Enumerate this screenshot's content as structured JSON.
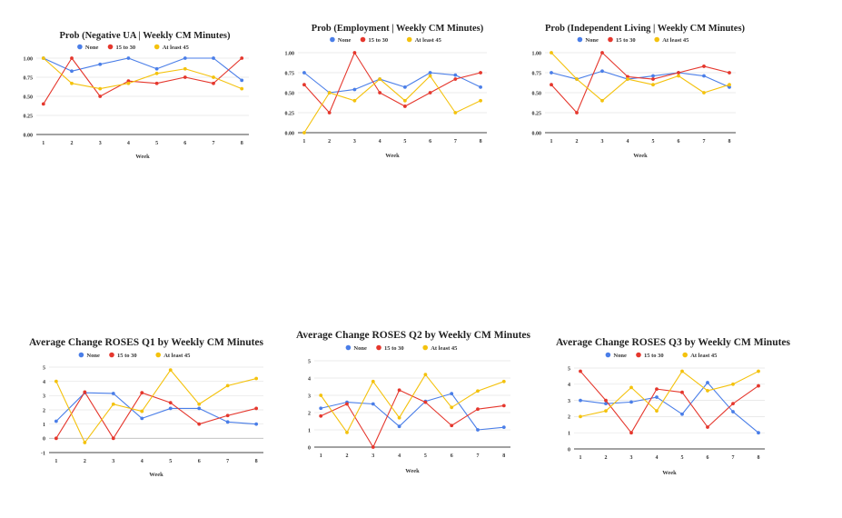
{
  "colors": {
    "none": "#4a7ee8",
    "mid": "#e5372d",
    "high": "#f4c20d",
    "grid": "#e4e4e4",
    "axis": "#444444"
  },
  "chart_data": [
    {
      "type": "line",
      "title": "Prob (Negative UA | Weekly CM Minutes)",
      "xlabel": "Week",
      "ylabel": "",
      "x": [
        1,
        2,
        3,
        4,
        5,
        6,
        7,
        8
      ],
      "ylim": [
        0,
        1
      ],
      "yticks": [
        "0.00",
        "0.25",
        "0.50",
        "0.75",
        "1.00"
      ],
      "grid": true,
      "legend": "top",
      "series": [
        {
          "name": "None",
          "values": [
            1.0,
            0.83,
            0.92,
            1.0,
            0.86,
            1.0,
            1.0,
            0.71
          ]
        },
        {
          "name": "15 to 30",
          "values": [
            0.4,
            1.0,
            0.5,
            0.7,
            0.67,
            0.75,
            0.67,
            1.0
          ]
        },
        {
          "name": "At least 45",
          "values": [
            1.0,
            0.67,
            0.6,
            0.67,
            0.8,
            0.86,
            0.75,
            0.6
          ]
        }
      ]
    },
    {
      "type": "line",
      "title": "Prob (Employment | Weekly CM Minutes)",
      "xlabel": "Week",
      "ylabel": "",
      "x": [
        1,
        2,
        3,
        4,
        5,
        6,
        7,
        8
      ],
      "ylim": [
        0,
        1
      ],
      "yticks": [
        "0.00",
        "0.25",
        "0.50",
        "0.75",
        "1.00"
      ],
      "grid": true,
      "legend": "top",
      "series": [
        {
          "name": "None",
          "values": [
            0.75,
            0.5,
            0.54,
            0.67,
            0.57,
            0.75,
            0.72,
            0.57
          ]
        },
        {
          "name": "15 to 30",
          "values": [
            0.6,
            0.25,
            1.0,
            0.5,
            0.33,
            0.5,
            0.67,
            0.75
          ]
        },
        {
          "name": "At least 45",
          "values": [
            0.0,
            0.5,
            0.4,
            0.67,
            0.4,
            0.71,
            0.25,
            0.4
          ]
        }
      ]
    },
    {
      "type": "line",
      "title": "Prob (Independent Living | Weekly CM Minutes)",
      "xlabel": "Week",
      "ylabel": "",
      "x": [
        1,
        2,
        3,
        4,
        5,
        6,
        7,
        8
      ],
      "ylim": [
        0,
        1
      ],
      "yticks": [
        "0.00",
        "0.25",
        "0.50",
        "0.75",
        "1.00"
      ],
      "grid": true,
      "legend": "top",
      "series": [
        {
          "name": "None",
          "values": [
            0.75,
            0.67,
            0.77,
            0.67,
            0.71,
            0.75,
            0.71,
            0.57
          ]
        },
        {
          "name": "15 to 30",
          "values": [
            0.6,
            0.25,
            1.0,
            0.7,
            0.67,
            0.75,
            0.83,
            0.75
          ]
        },
        {
          "name": "At least 45",
          "values": [
            1.0,
            0.67,
            0.4,
            0.67,
            0.6,
            0.71,
            0.5,
            0.6
          ]
        }
      ]
    },
    {
      "type": "line",
      "title": "Average Change ROSES Q1 by Weekly CM Minutes",
      "xlabel": "Week",
      "ylabel": "",
      "x": [
        1,
        2,
        3,
        4,
        5,
        6,
        7,
        8
      ],
      "ylim": [
        -1,
        5
      ],
      "yticks": [
        "-1",
        "0",
        "1",
        "2",
        "3",
        "4",
        "5"
      ],
      "grid": true,
      "legend": "top",
      "series": [
        {
          "name": "None",
          "values": [
            1.2,
            3.2,
            3.15,
            1.4,
            2.1,
            2.1,
            1.15,
            1.0
          ]
        },
        {
          "name": "15 to 30",
          "values": [
            0.0,
            3.25,
            0.0,
            3.2,
            2.5,
            1.0,
            1.6,
            2.1
          ]
        },
        {
          "name": "At least 45",
          "values": [
            4.0,
            -0.3,
            2.4,
            1.9,
            4.8,
            2.4,
            3.7,
            4.2
          ]
        }
      ]
    },
    {
      "type": "line",
      "title": "Average Change ROSES Q2 by Weekly CM Minutes",
      "xlabel": "Week",
      "ylabel": "",
      "x": [
        1,
        2,
        3,
        4,
        5,
        6,
        7,
        8
      ],
      "ylim": [
        0,
        5
      ],
      "yticks": [
        "0",
        "1",
        "2",
        "3",
        "4",
        "5"
      ],
      "grid": true,
      "legend": "top",
      "series": [
        {
          "name": "None",
          "values": [
            2.25,
            2.6,
            2.5,
            1.2,
            2.65,
            3.1,
            1.0,
            1.15
          ]
        },
        {
          "name": "15 to 30",
          "values": [
            1.8,
            2.5,
            0.0,
            3.3,
            2.6,
            1.25,
            2.2,
            2.4
          ]
        },
        {
          "name": "At least 45",
          "values": [
            3.0,
            0.85,
            3.8,
            1.7,
            4.2,
            2.3,
            3.25,
            3.8
          ]
        }
      ]
    },
    {
      "type": "line",
      "title": "Average Change ROSES Q3 by Weekly CM Minutes",
      "xlabel": "Week",
      "ylabel": "",
      "x": [
        1,
        2,
        3,
        4,
        5,
        6,
        7,
        8
      ],
      "ylim": [
        0,
        5
      ],
      "yticks": [
        "0",
        "1",
        "2",
        "3",
        "4",
        "5"
      ],
      "grid": true,
      "legend": "top",
      "series": [
        {
          "name": "None",
          "values": [
            3.0,
            2.8,
            2.9,
            3.2,
            2.15,
            4.1,
            2.3,
            1.0
          ]
        },
        {
          "name": "15 to 30",
          "values": [
            4.8,
            3.0,
            1.0,
            3.7,
            3.5,
            1.35,
            2.8,
            3.9
          ]
        },
        {
          "name": "At least 45",
          "values": [
            2.0,
            2.35,
            3.8,
            2.35,
            4.8,
            3.6,
            4.0,
            4.8
          ]
        }
      ]
    }
  ]
}
